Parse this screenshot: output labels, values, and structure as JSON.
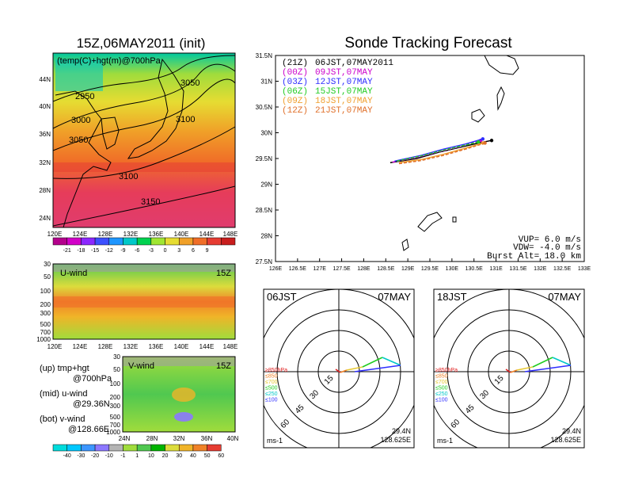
{
  "colors": {
    "temp_scale": [
      "#b4008c",
      "#d200c8",
      "#8c28ff",
      "#3c50ff",
      "#1e96ff",
      "#00c8c8",
      "#00d250",
      "#a0e632",
      "#e6dc32",
      "#f0a028",
      "#f06e28",
      "#e63c32",
      "#c81e1e"
    ],
    "wind_scale": [
      "#00dcdc",
      "#00c8ff",
      "#3c96ff",
      "#8c78ff",
      "#b4b4b4",
      "#a0dc3c",
      "#50c850",
      "#00b400",
      "#dcdc3c",
      "#f0b428",
      "#f08228",
      "#e63c32"
    ],
    "path_21z": "#000000",
    "path_00z": "#cc00cc",
    "path_03z": "#2e2eff",
    "path_06z": "#22cc22",
    "path_09z": "#f0a030",
    "path_12z": "#e0702a"
  },
  "left": {
    "map_title": "15Z,06MAY2011 (init)",
    "map_overlay": "(temp(C)+hgt(m)@700hPa",
    "lat_ticks": [
      "44N",
      "40N",
      "36N",
      "32N",
      "28N",
      "24N"
    ],
    "lon_ticks": [
      "120E",
      "124E",
      "128E",
      "132E",
      "136E",
      "140E",
      "144E",
      "148E"
    ],
    "contour_labels": [
      "2950",
      "3000",
      "3050",
      "3050",
      "3100",
      "3100",
      "3150"
    ],
    "temp_colorbar": [
      "-21",
      "-18",
      "-15",
      "-12",
      "-9",
      "-6",
      "-3",
      "0",
      "3",
      "6",
      "9"
    ],
    "u_title": "U-wind",
    "u_time": "15Z",
    "p_ticks_u": [
      "30",
      "50",
      "100",
      "200",
      "300",
      "500",
      "700",
      "1000"
    ],
    "u_lon_ticks": [
      "120E",
      "124E",
      "128E",
      "132E",
      "136E",
      "140E",
      "144E",
      "148E"
    ],
    "v_title": "V-wind",
    "v_time": "15Z",
    "p_ticks_v": [
      "30",
      "50",
      "100",
      "200",
      "300",
      "500",
      "700",
      "1000"
    ],
    "v_lat_ticks": [
      "24N",
      "28N",
      "32N",
      "36N",
      "40N"
    ],
    "wind_colorbar": [
      "-40",
      "-30",
      "-20",
      "-10",
      "-1",
      "1",
      "10",
      "20",
      "30",
      "40",
      "50",
      "60"
    ],
    "notes": [
      "(up) tmp+hgt",
      "@700hPa",
      "(mid) u-wind",
      "@29.36N",
      "(bot) v-wind",
      "@128.66E"
    ]
  },
  "main": {
    "title": "Sonde Tracking Forecast",
    "legend": [
      {
        "tag": "(21Z)",
        "time": "06JST,07MAY2011",
        "color": "#000000"
      },
      {
        "tag": "(00Z)",
        "time": "09JST,07MAY",
        "color": "#cc00cc"
      },
      {
        "tag": "(03Z)",
        "time": "12JST,07MAY",
        "color": "#2e2eff"
      },
      {
        "tag": "(06Z)",
        "time": "15JST,07MAY",
        "color": "#22cc22"
      },
      {
        "tag": "(09Z)",
        "time": "18JST,07MAY",
        "color": "#f0a030"
      },
      {
        "tag": "(12Z)",
        "time": "21JST,07MAY",
        "color": "#e0702a"
      }
    ],
    "lat_ticks": [
      "31.5N",
      "31N",
      "30.5N",
      "30N",
      "29.5N",
      "29N",
      "28.5N",
      "28N",
      "27.5N"
    ],
    "lon_ticks": [
      "126E",
      "126.5E",
      "127E",
      "127.5E",
      "128E",
      "128.5E",
      "129E",
      "129.5E",
      "130E",
      "130.5E",
      "131E",
      "131.5E",
      "132E",
      "132.5E",
      "133E"
    ],
    "vup": "VUP=  6.0  m/s",
    "vdw": "VDW= -4.0  m/s",
    "burst": "Burst Alt=  18.0  km"
  },
  "hodo_left": {
    "time": "06JST",
    "date": "07MAY",
    "unit": "ms-1",
    "lat": "29.4N",
    "lon": "128.625E",
    "ring_labels": [
      "15",
      "30",
      "45",
      "60"
    ],
    "levels": [
      {
        "label": "≥850hPa",
        "color": "#e02020"
      },
      {
        "label": "≤850",
        "color": "#f08228"
      },
      {
        "label": "≤700",
        "color": "#e6c832"
      },
      {
        "label": "≤500",
        "color": "#22cc22"
      },
      {
        "label": "≤250",
        "color": "#00c8c8"
      },
      {
        "label": "≤100",
        "color": "#2e2eff"
      }
    ]
  },
  "hodo_right": {
    "time": "18JST",
    "date": "07MAY",
    "unit": "ms-1",
    "lat": "29.4N",
    "lon": "128.625E",
    "ring_labels": [
      "15",
      "30",
      "45",
      "60"
    ],
    "levels": [
      {
        "label": "≥850hPa",
        "color": "#e02020"
      },
      {
        "label": "≤850",
        "color": "#f08228"
      },
      {
        "label": "≤700",
        "color": "#e6c832"
      },
      {
        "label": "≤500",
        "color": "#22cc22"
      },
      {
        "label": "≤250",
        "color": "#00c8c8"
      },
      {
        "label": "≤100",
        "color": "#2e2eff"
      }
    ]
  },
  "chart_data": [
    {
      "type": "heatmap",
      "title": "15Z,06MAY2011 (init)",
      "subtitle": "(temp(C)+hgt(m)@700hPa",
      "x_ticks": [
        "120E",
        "124E",
        "128E",
        "132E",
        "136E",
        "140E",
        "144E",
        "148E"
      ],
      "y_ticks": [
        "44N",
        "40N",
        "36N",
        "32N",
        "28N",
        "24N"
      ],
      "colorbar": [
        -21,
        -18,
        -15,
        -12,
        -9,
        -6,
        -3,
        0,
        3,
        6,
        9
      ],
      "contour_labels": [
        2950,
        3000,
        3050,
        3050,
        3100,
        3100,
        3150
      ]
    },
    {
      "type": "heatmap",
      "title": "U-wind",
      "x_ticks": [
        "120E",
        "124E",
        "128E",
        "132E",
        "136E",
        "140E",
        "144E",
        "148E"
      ],
      "y_ticks": [
        30,
        50,
        100,
        200,
        300,
        500,
        700,
        1000
      ]
    },
    {
      "type": "heatmap",
      "title": "V-wind",
      "x_ticks": [
        "24N",
        "28N",
        "32N",
        "36N",
        "40N"
      ],
      "y_ticks": [
        30,
        50,
        100,
        200,
        300,
        500,
        700,
        1000
      ],
      "colorbar": [
        -40,
        -30,
        -20,
        -10,
        -1,
        1,
        10,
        20,
        30,
        40,
        50,
        60
      ]
    },
    {
      "type": "line",
      "title": "Sonde Tracking Forecast",
      "xlim": [
        126,
        133
      ],
      "ylim": [
        27.5,
        31.5
      ],
      "series": [
        {
          "name": "(21Z)",
          "x": [
            128.6,
            129.2,
            129.7,
            130.2,
            130.6,
            130.9
          ],
          "y": [
            29.42,
            29.5,
            29.62,
            29.72,
            29.8,
            29.85
          ]
        },
        {
          "name": "(00Z)",
          "x": [
            128.65,
            129.2,
            129.7,
            130.2,
            130.65
          ],
          "y": [
            29.43,
            29.52,
            29.63,
            29.73,
            29.85
          ]
        },
        {
          "name": "(03Z)",
          "x": [
            128.7,
            129.3,
            129.8,
            130.3,
            130.7
          ],
          "y": [
            29.45,
            29.56,
            29.68,
            29.78,
            29.88
          ]
        },
        {
          "name": "(06Z)",
          "x": [
            128.75,
            129.3,
            129.8,
            130.3,
            130.6
          ],
          "y": [
            29.45,
            29.55,
            29.66,
            29.76,
            29.82
          ]
        },
        {
          "name": "(09Z)",
          "x": [
            128.8,
            129.3,
            129.8,
            130.3,
            130.7
          ],
          "y": [
            29.42,
            29.48,
            29.58,
            29.7,
            29.8
          ]
        },
        {
          "name": "(12Z)",
          "x": [
            128.8,
            129.3,
            129.8,
            130.3,
            130.75
          ],
          "y": [
            29.4,
            29.46,
            29.56,
            29.68,
            29.8
          ]
        }
      ]
    }
  ]
}
